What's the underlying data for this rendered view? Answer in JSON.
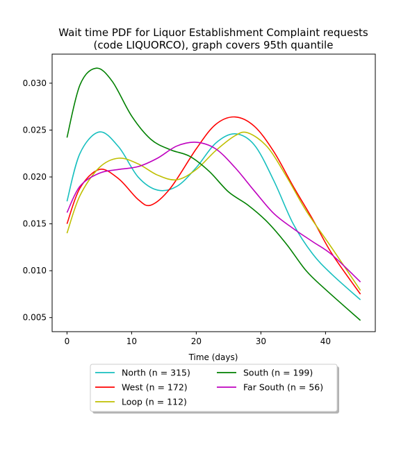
{
  "chart_data": {
    "type": "line",
    "title": "Wait time PDF for Liquor Establishment Complaint  requests",
    "subtitle": "(code LIQUORCO), graph covers 95th quantile",
    "xlabel": "Time (days)",
    "ylabel": "",
    "xlim": [
      -2.3,
      47.7
    ],
    "ylim": [
      0.0035,
      0.0331
    ],
    "x_ticks": [
      0,
      10,
      20,
      30,
      40
    ],
    "y_ticks": [
      0.005,
      0.01,
      0.015,
      0.02,
      0.025,
      0.03
    ],
    "y_tick_labels": [
      "0.005",
      "0.010",
      "0.015",
      "0.020",
      "0.025",
      "0.030"
    ],
    "grid": false,
    "legend_position": "below",
    "series": [
      {
        "name": "North (n = 315)",
        "color": "#17bfbf",
        "points": [
          [
            0,
            0.0174
          ],
          [
            2,
            0.0225
          ],
          [
            5,
            0.0248
          ],
          [
            8,
            0.0232
          ],
          [
            11,
            0.02
          ],
          [
            14,
            0.0186
          ],
          [
            17,
            0.019
          ],
          [
            20,
            0.021
          ],
          [
            23,
            0.0236
          ],
          [
            26,
            0.0246
          ],
          [
            29,
            0.0234
          ],
          [
            32,
            0.0196
          ],
          [
            35,
            0.015
          ],
          [
            38,
            0.0118
          ],
          [
            41,
            0.0096
          ],
          [
            45.4,
            0.0069
          ]
        ]
      },
      {
        "name": "West (n = 172)",
        "color": "#ff0000",
        "points": [
          [
            0,
            0.015
          ],
          [
            2,
            0.0188
          ],
          [
            5,
            0.0208
          ],
          [
            8,
            0.0198
          ],
          [
            11,
            0.0176
          ],
          [
            13,
            0.017
          ],
          [
            16,
            0.0188
          ],
          [
            20,
            0.023
          ],
          [
            23,
            0.0256
          ],
          [
            26,
            0.0264
          ],
          [
            29,
            0.0254
          ],
          [
            32,
            0.0227
          ],
          [
            35,
            0.019
          ],
          [
            38,
            0.0155
          ],
          [
            41,
            0.0118
          ],
          [
            45.4,
            0.0075
          ]
        ]
      },
      {
        "name": "Loop (n = 112)",
        "color": "#bfbf00",
        "points": [
          [
            0,
            0.014
          ],
          [
            2,
            0.018
          ],
          [
            5,
            0.021
          ],
          [
            8,
            0.022
          ],
          [
            11,
            0.0214
          ],
          [
            14,
            0.0202
          ],
          [
            17,
            0.0197
          ],
          [
            20,
            0.0208
          ],
          [
            23,
            0.0228
          ],
          [
            26,
            0.0244
          ],
          [
            28,
            0.0247
          ],
          [
            31,
            0.0232
          ],
          [
            34,
            0.02
          ],
          [
            37,
            0.0164
          ],
          [
            41,
            0.0124
          ],
          [
            45.4,
            0.0079
          ]
        ]
      },
      {
        "name": "South (n = 199)",
        "color": "#008000",
        "points": [
          [
            0,
            0.0242
          ],
          [
            2,
            0.0298
          ],
          [
            4.5,
            0.0316
          ],
          [
            7,
            0.0302
          ],
          [
            10,
            0.0265
          ],
          [
            13,
            0.024
          ],
          [
            16,
            0.0229
          ],
          [
            19,
            0.0222
          ],
          [
            22,
            0.0206
          ],
          [
            25,
            0.0184
          ],
          [
            28,
            0.017
          ],
          [
            31,
            0.0152
          ],
          [
            34,
            0.0128
          ],
          [
            37,
            0.01
          ],
          [
            40,
            0.008
          ],
          [
            45.4,
            0.0047
          ]
        ]
      },
      {
        "name": "Far South (n = 56)",
        "color": "#bf00bf",
        "points": [
          [
            0,
            0.0162
          ],
          [
            2,
            0.019
          ],
          [
            5,
            0.0204
          ],
          [
            8,
            0.0208
          ],
          [
            11,
            0.0211
          ],
          [
            14,
            0.022
          ],
          [
            17,
            0.0233
          ],
          [
            20,
            0.0237
          ],
          [
            23,
            0.023
          ],
          [
            26,
            0.021
          ],
          [
            29,
            0.0185
          ],
          [
            32,
            0.0161
          ],
          [
            35,
            0.0145
          ],
          [
            38,
            0.0131
          ],
          [
            41,
            0.0117
          ],
          [
            45.4,
            0.0088
          ]
        ]
      }
    ]
  }
}
